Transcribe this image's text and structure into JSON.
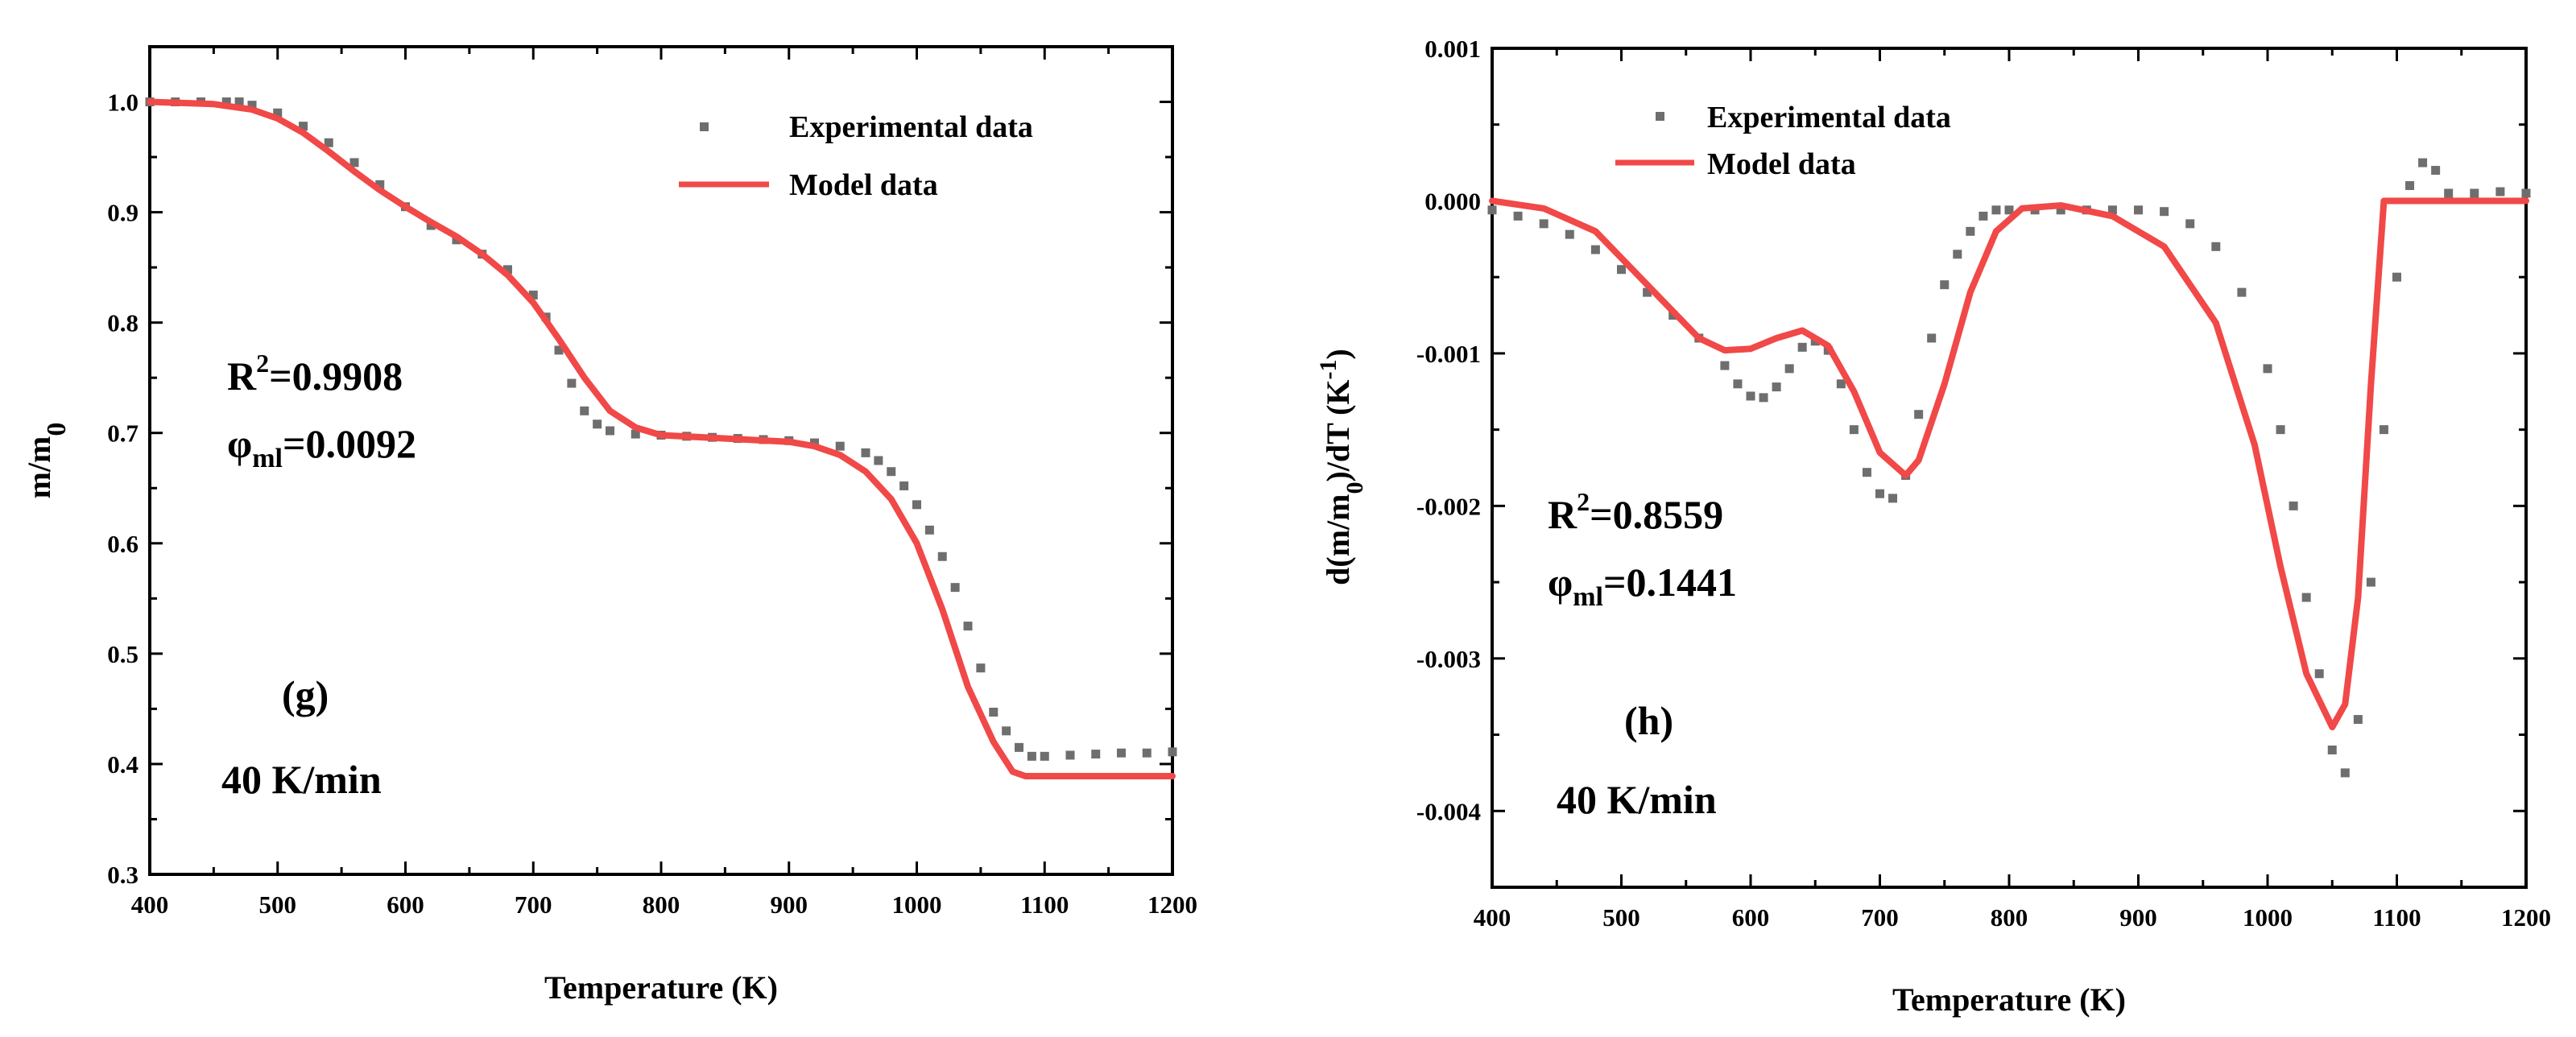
{
  "chart_data": [
    {
      "type": "scatter",
      "panel_label": "(g)",
      "rate_label": "40 K/min",
      "xlabel": "Temperature (K)",
      "ylabel": {
        "base": "m/m",
        "sub": "0"
      },
      "xlim": [
        400,
        1200
      ],
      "ylim": [
        0.3,
        1.05
      ],
      "xticks": [
        400,
        500,
        600,
        700,
        800,
        900,
        1000,
        1100,
        1200
      ],
      "yticks": [
        0.3,
        0.4,
        0.5,
        0.6,
        0.7,
        0.8,
        0.9,
        1.0
      ],
      "ytick_decimals": 1,
      "annotations": {
        "r2_prefix": "R",
        "r2_sup": "2",
        "r2_value": "=0.9908",
        "phi_prefix": "φ",
        "phi_sub": "ml",
        "phi_value": "=0.0092"
      },
      "legend": [
        "Experimental data",
        "Model data"
      ],
      "series": [
        {
          "name": "Experimental data",
          "style": "markers",
          "color": "#6e6e6e",
          "points": [
            [
              400,
              1.0
            ],
            [
              420,
              1.0
            ],
            [
              440,
              1.0
            ],
            [
              460,
              1.0
            ],
            [
              470,
              1.0
            ],
            [
              480,
              0.997
            ],
            [
              500,
              0.99
            ],
            [
              520,
              0.978
            ],
            [
              540,
              0.963
            ],
            [
              560,
              0.945
            ],
            [
              580,
              0.925
            ],
            [
              600,
              0.905
            ],
            [
              620,
              0.888
            ],
            [
              640,
              0.875
            ],
            [
              660,
              0.862
            ],
            [
              680,
              0.848
            ],
            [
              700,
              0.825
            ],
            [
              710,
              0.805
            ],
            [
              720,
              0.775
            ],
            [
              730,
              0.745
            ],
            [
              740,
              0.72
            ],
            [
              750,
              0.708
            ],
            [
              760,
              0.702
            ],
            [
              780,
              0.699
            ],
            [
              800,
              0.698
            ],
            [
              820,
              0.697
            ],
            [
              840,
              0.696
            ],
            [
              860,
              0.695
            ],
            [
              880,
              0.694
            ],
            [
              900,
              0.693
            ],
            [
              920,
              0.691
            ],
            [
              940,
              0.688
            ],
            [
              960,
              0.682
            ],
            [
              970,
              0.675
            ],
            [
              980,
              0.665
            ],
            [
              990,
              0.652
            ],
            [
              1000,
              0.635
            ],
            [
              1010,
              0.612
            ],
            [
              1020,
              0.588
            ],
            [
              1030,
              0.56
            ],
            [
              1040,
              0.525
            ],
            [
              1050,
              0.487
            ],
            [
              1060,
              0.447
            ],
            [
              1070,
              0.43
            ],
            [
              1080,
              0.415
            ],
            [
              1090,
              0.407
            ],
            [
              1100,
              0.407
            ],
            [
              1120,
              0.408
            ],
            [
              1140,
              0.409
            ],
            [
              1160,
              0.41
            ],
            [
              1180,
              0.41
            ],
            [
              1200,
              0.411
            ]
          ]
        },
        {
          "name": "Model data",
          "style": "line",
          "color": "#f14848",
          "points": [
            [
              400,
              1.0
            ],
            [
              450,
              0.998
            ],
            [
              480,
              0.993
            ],
            [
              500,
              0.985
            ],
            [
              520,
              0.972
            ],
            [
              540,
              0.955
            ],
            [
              560,
              0.937
            ],
            [
              580,
              0.92
            ],
            [
              600,
              0.905
            ],
            [
              620,
              0.891
            ],
            [
              640,
              0.878
            ],
            [
              660,
              0.862
            ],
            [
              680,
              0.843
            ],
            [
              700,
              0.818
            ],
            [
              720,
              0.785
            ],
            [
              740,
              0.75
            ],
            [
              760,
              0.72
            ],
            [
              780,
              0.705
            ],
            [
              800,
              0.698
            ],
            [
              850,
              0.695
            ],
            [
              900,
              0.692
            ],
            [
              920,
              0.688
            ],
            [
              940,
              0.68
            ],
            [
              960,
              0.665
            ],
            [
              980,
              0.64
            ],
            [
              1000,
              0.6
            ],
            [
              1020,
              0.54
            ],
            [
              1040,
              0.47
            ],
            [
              1060,
              0.42
            ],
            [
              1075,
              0.393
            ],
            [
              1085,
              0.389
            ],
            [
              1100,
              0.389
            ],
            [
              1150,
              0.389
            ],
            [
              1200,
              0.389
            ]
          ]
        }
      ]
    },
    {
      "type": "scatter",
      "panel_label": "(h)",
      "rate_label": "40 K/min",
      "xlabel": "Temperature (K)",
      "ylabel": {
        "p1": "d(m/m",
        "sub": "0",
        "p2": ")/dT (K",
        "sup": "-1",
        "p3": ")"
      },
      "xlim": [
        400,
        1200
      ],
      "ylim": [
        -0.0045,
        0.001
      ],
      "xticks": [
        400,
        500,
        600,
        700,
        800,
        900,
        1000,
        1100,
        1200
      ],
      "yticks": [
        -0.004,
        -0.003,
        -0.002,
        -0.001,
        0.0,
        0.001
      ],
      "ytick_decimals": 3,
      "annotations": {
        "r2_prefix": "R",
        "r2_sup": "2",
        "r2_value": "=0.8559",
        "phi_prefix": "φ",
        "phi_sub": "ml",
        "phi_value": "=0.1441"
      },
      "legend": [
        "Experimental data",
        "Model data"
      ],
      "series": [
        {
          "name": "Experimental data",
          "style": "markers",
          "color": "#6e6e6e",
          "points": [
            [
              400,
              -6e-05
            ],
            [
              420,
              -0.0001
            ],
            [
              440,
              -0.00015
            ],
            [
              460,
              -0.00022
            ],
            [
              480,
              -0.00032
            ],
            [
              500,
              -0.00045
            ],
            [
              520,
              -0.0006
            ],
            [
              540,
              -0.00075
            ],
            [
              560,
              -0.0009
            ],
            [
              580,
              -0.00108
            ],
            [
              590,
              -0.0012
            ],
            [
              600,
              -0.00128
            ],
            [
              610,
              -0.00129
            ],
            [
              620,
              -0.00122
            ],
            [
              630,
              -0.0011
            ],
            [
              640,
              -0.00096
            ],
            [
              650,
              -0.00092
            ],
            [
              660,
              -0.00098
            ],
            [
              670,
              -0.0012
            ],
            [
              680,
              -0.0015
            ],
            [
              690,
              -0.00178
            ],
            [
              700,
              -0.00192
            ],
            [
              710,
              -0.00195
            ],
            [
              720,
              -0.0018
            ],
            [
              730,
              -0.0014
            ],
            [
              740,
              -0.0009
            ],
            [
              750,
              -0.00055
            ],
            [
              760,
              -0.00035
            ],
            [
              770,
              -0.0002
            ],
            [
              780,
              -0.0001
            ],
            [
              790,
              -6e-05
            ],
            [
              800,
              -6e-05
            ],
            [
              820,
              -6e-05
            ],
            [
              840,
              -6e-05
            ],
            [
              860,
              -6e-05
            ],
            [
              880,
              -6e-05
            ],
            [
              900,
              -6e-05
            ],
            [
              920,
              -7e-05
            ],
            [
              940,
              -0.00015
            ],
            [
              960,
              -0.0003
            ],
            [
              980,
              -0.0006
            ],
            [
              1000,
              -0.0011
            ],
            [
              1010,
              -0.0015
            ],
            [
              1020,
              -0.002
            ],
            [
              1030,
              -0.0026
            ],
            [
              1040,
              -0.0031
            ],
            [
              1050,
              -0.0036
            ],
            [
              1060,
              -0.00375
            ],
            [
              1070,
              -0.0034
            ],
            [
              1080,
              -0.0025
            ],
            [
              1090,
              -0.0015
            ],
            [
              1100,
              -0.0005
            ],
            [
              1110,
              0.0001
            ],
            [
              1120,
              0.00025
            ],
            [
              1130,
              0.0002
            ],
            [
              1140,
              5e-05
            ],
            [
              1160,
              5e-05
            ],
            [
              1180,
              6e-05
            ],
            [
              1200,
              5e-05
            ]
          ]
        },
        {
          "name": "Model data",
          "style": "line",
          "color": "#f14848",
          "points": [
            [
              400,
              0.0
            ],
            [
              440,
              -5e-05
            ],
            [
              480,
              -0.0002
            ],
            [
              520,
              -0.00055
            ],
            [
              560,
              -0.0009
            ],
            [
              580,
              -0.00098
            ],
            [
              600,
              -0.00097
            ],
            [
              620,
              -0.0009
            ],
            [
              640,
              -0.00085
            ],
            [
              660,
              -0.00095
            ],
            [
              680,
              -0.00125
            ],
            [
              700,
              -0.00165
            ],
            [
              720,
              -0.0018
            ],
            [
              730,
              -0.0017
            ],
            [
              750,
              -0.0012
            ],
            [
              770,
              -0.0006
            ],
            [
              790,
              -0.0002
            ],
            [
              810,
              -5e-05
            ],
            [
              840,
              -3e-05
            ],
            [
              880,
              -0.0001
            ],
            [
              920,
              -0.0003
            ],
            [
              960,
              -0.0008
            ],
            [
              990,
              -0.0016
            ],
            [
              1010,
              -0.0024
            ],
            [
              1030,
              -0.0031
            ],
            [
              1050,
              -0.00345
            ],
            [
              1060,
              -0.0033
            ],
            [
              1070,
              -0.0026
            ],
            [
              1080,
              -0.0012
            ],
            [
              1090,
              0.0
            ],
            [
              1100,
              0.0
            ],
            [
              1150,
              0.0
            ],
            [
              1200,
              0.0
            ]
          ]
        }
      ]
    }
  ]
}
